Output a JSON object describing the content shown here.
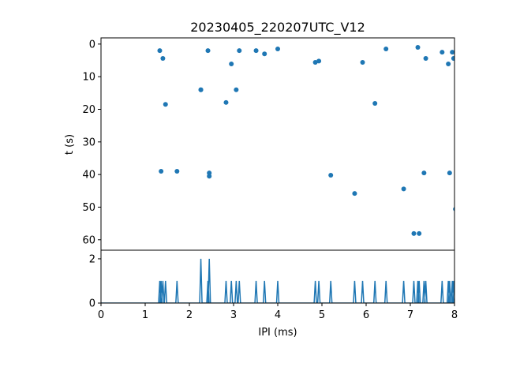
{
  "chart_data": [
    {
      "type": "scatter",
      "title": "20230405_220207UTC_V12",
      "xlabel": "",
      "ylabel": "t (s)",
      "xlim": [
        0,
        8
      ],
      "ylim": [
        63.2,
        -1.9
      ],
      "yticks": [
        "0",
        "10",
        "20",
        "30",
        "40",
        "50",
        "60"
      ],
      "ytick_values": [
        0,
        10,
        20,
        30,
        40,
        50,
        60
      ],
      "color": "#1f77b4",
      "points": [
        [
          1.33,
          2.0
        ],
        [
          1.4,
          4.4
        ],
        [
          1.46,
          18.5
        ],
        [
          1.36,
          39.0
        ],
        [
          1.72,
          39.0
        ],
        [
          2.26,
          14.0
        ],
        [
          2.26,
          14.0
        ],
        [
          2.42,
          2.0
        ],
        [
          2.45,
          39.5
        ],
        [
          2.45,
          40.5
        ],
        [
          2.83,
          17.9
        ],
        [
          2.95,
          6.1
        ],
        [
          3.06,
          14.0
        ],
        [
          3.13,
          2.0
        ],
        [
          3.51,
          2.0
        ],
        [
          3.7,
          3.0
        ],
        [
          4.0,
          1.5
        ],
        [
          4.85,
          5.6
        ],
        [
          4.93,
          5.2
        ],
        [
          5.2,
          40.2
        ],
        [
          5.74,
          45.8
        ],
        [
          5.92,
          5.6
        ],
        [
          6.2,
          18.2
        ],
        [
          6.45,
          1.5
        ],
        [
          6.85,
          44.4
        ],
        [
          7.08,
          58.1
        ],
        [
          7.2,
          58.1
        ],
        [
          7.17,
          1.0
        ],
        [
          7.31,
          39.5
        ],
        [
          7.35,
          4.4
        ],
        [
          7.72,
          2.5
        ],
        [
          7.86,
          6.1
        ],
        [
          7.89,
          39.5
        ],
        [
          7.95,
          2.5
        ],
        [
          7.98,
          4.4
        ],
        [
          8.02,
          50.6
        ]
      ]
    },
    {
      "type": "line",
      "title": "",
      "xlabel": "IPI (ms)",
      "ylabel": "",
      "xlim": [
        0,
        8
      ],
      "ylim": [
        0,
        2.39
      ],
      "xticks": [
        "0",
        "1",
        "2",
        "3",
        "4",
        "5",
        "6",
        "7",
        "8"
      ],
      "xtick_values": [
        0,
        1,
        2,
        3,
        4,
        5,
        6,
        7,
        8
      ],
      "yticks": [
        "0",
        "2"
      ],
      "ytick_values": [
        0,
        2
      ],
      "color": "#1f77b4",
      "description_of_values": "histogram counts of scatter x-values, bin width 0.01"
    }
  ]
}
